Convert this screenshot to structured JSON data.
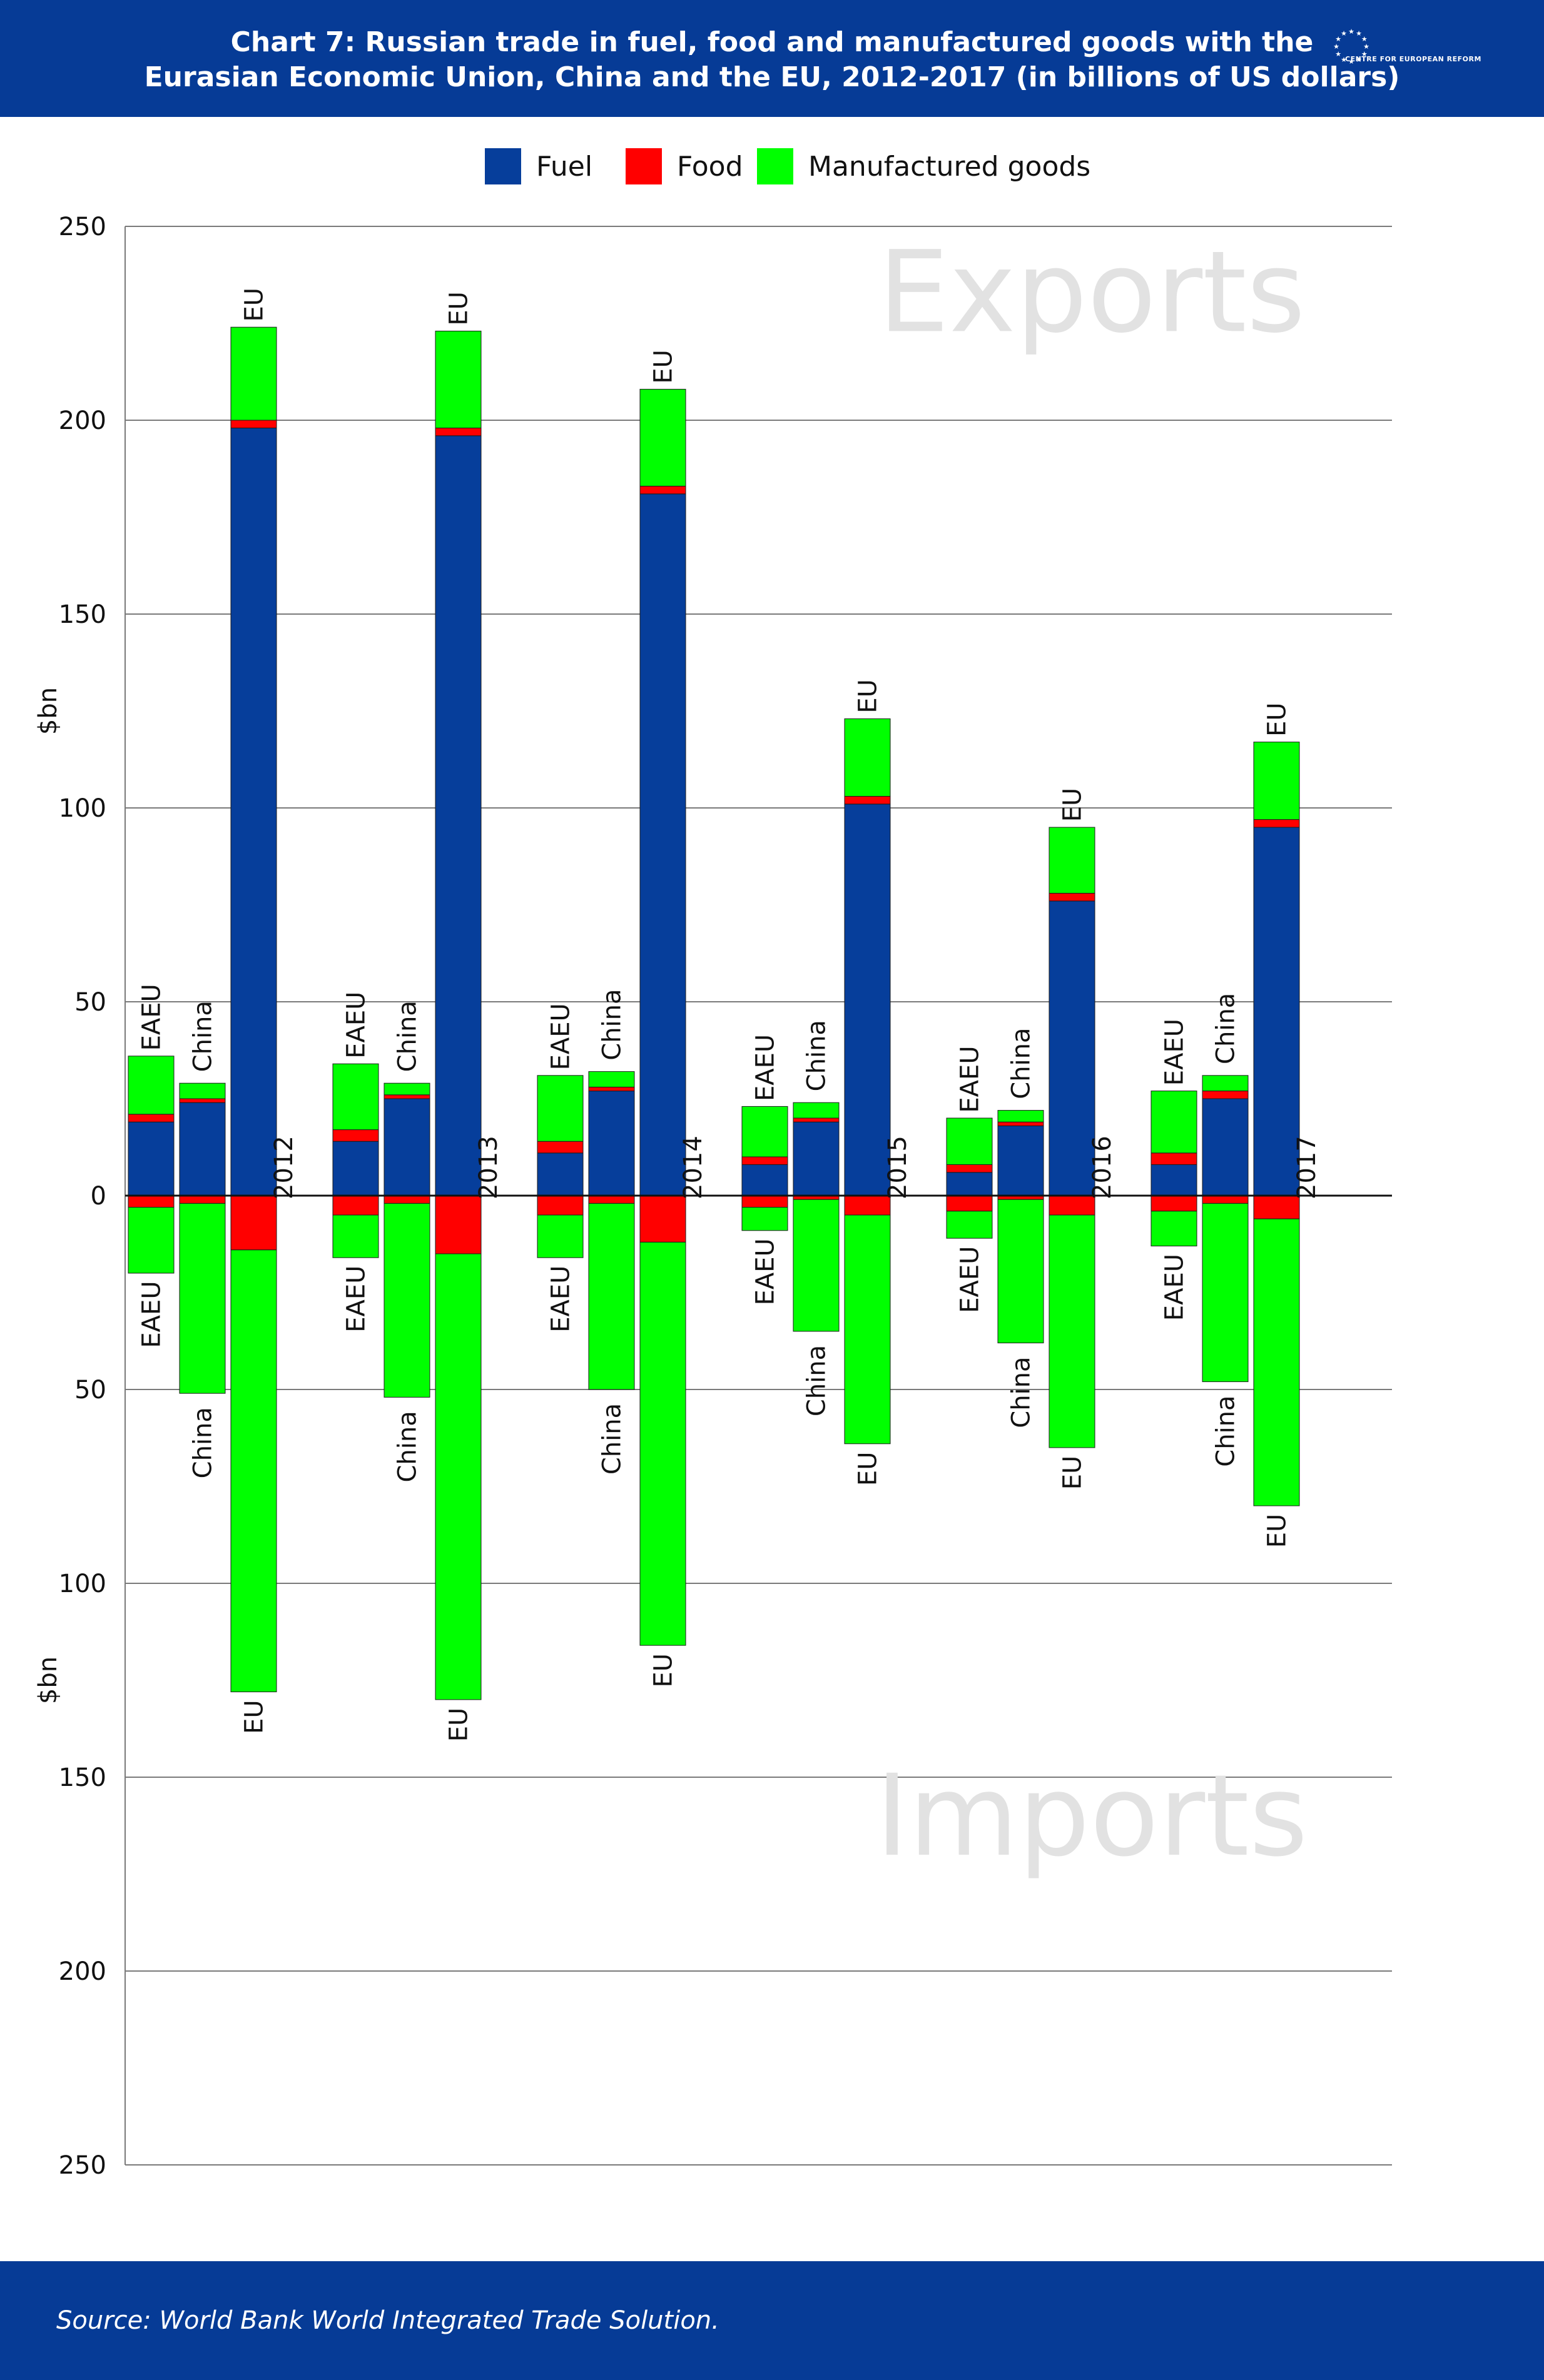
{
  "header": {
    "title_line1": "Chart 7: Russian trade in fuel, food and manufactured goods with the",
    "title_line2": "Eurasian Economic Union, China and the EU, 2012-2017 (in billions of US dollars)",
    "logo_text": "CENTRE FOR EUROPEAN REFORM"
  },
  "footer": {
    "source": "Source: World Bank World Integrated Trade Solution."
  },
  "colors": {
    "fuel": "#063e9b",
    "food": "#ff0000",
    "manufactured": "#00ff00",
    "banner": "#063b96"
  },
  "chart_data": {
    "type": "bar",
    "stacked": true,
    "diverging": true,
    "legend": [
      "Fuel",
      "Food",
      "Manufactured goods"
    ],
    "legend_position": "top",
    "ylabel_top": "$bn",
    "ylabel_bottom": "$bn",
    "region_top": "Exports",
    "region_bottom": "Imports",
    "ylim": [
      -250,
      250
    ],
    "yticks": [
      250,
      200,
      150,
      100,
      50,
      0,
      50,
      100,
      150,
      200,
      250
    ],
    "grid": true,
    "partners": [
      "EAEU",
      "China",
      "EU"
    ],
    "years": [
      {
        "year": "2012",
        "groups": [
          {
            "partner": "EAEU",
            "exports": {
              "fuel": 19,
              "food": 2,
              "manufactured": 15
            },
            "imports": {
              "fuel": 0,
              "food": 3,
              "manufactured": 17
            }
          },
          {
            "partner": "China",
            "exports": {
              "fuel": 24,
              "food": 1,
              "manufactured": 4
            },
            "imports": {
              "fuel": 0,
              "food": 2,
              "manufactured": 49
            }
          },
          {
            "partner": "EU",
            "exports": {
              "fuel": 198,
              "food": 2,
              "manufactured": 24
            },
            "imports": {
              "fuel": 0,
              "food": 14,
              "manufactured": 114
            }
          }
        ]
      },
      {
        "year": "2013",
        "groups": [
          {
            "partner": "EAEU",
            "exports": {
              "fuel": 14,
              "food": 3,
              "manufactured": 17
            },
            "imports": {
              "fuel": 0,
              "food": 5,
              "manufactured": 11
            }
          },
          {
            "partner": "China",
            "exports": {
              "fuel": 25,
              "food": 1,
              "manufactured": 3
            },
            "imports": {
              "fuel": 0,
              "food": 2,
              "manufactured": 50
            }
          },
          {
            "partner": "EU",
            "exports": {
              "fuel": 196,
              "food": 2,
              "manufactured": 25
            },
            "imports": {
              "fuel": 0,
              "food": 15,
              "manufactured": 115
            }
          }
        ]
      },
      {
        "year": "2014",
        "groups": [
          {
            "partner": "EAEU",
            "exports": {
              "fuel": 11,
              "food": 3,
              "manufactured": 17
            },
            "imports": {
              "fuel": 0,
              "food": 5,
              "manufactured": 11
            }
          },
          {
            "partner": "China",
            "exports": {
              "fuel": 27,
              "food": 1,
              "manufactured": 4
            },
            "imports": {
              "fuel": 0,
              "food": 2,
              "manufactured": 48
            }
          },
          {
            "partner": "EU",
            "exports": {
              "fuel": 181,
              "food": 2,
              "manufactured": 25
            },
            "imports": {
              "fuel": 0,
              "food": 12,
              "manufactured": 104
            }
          }
        ]
      },
      {
        "year": "2015",
        "groups": [
          {
            "partner": "EAEU",
            "exports": {
              "fuel": 8,
              "food": 2,
              "manufactured": 13
            },
            "imports": {
              "fuel": 0,
              "food": 3,
              "manufactured": 6
            }
          },
          {
            "partner": "China",
            "exports": {
              "fuel": 19,
              "food": 1,
              "manufactured": 4
            },
            "imports": {
              "fuel": 0,
              "food": 1,
              "manufactured": 34
            }
          },
          {
            "partner": "EU",
            "exports": {
              "fuel": 101,
              "food": 2,
              "manufactured": 20
            },
            "imports": {
              "fuel": 0,
              "food": 5,
              "manufactured": 59
            }
          }
        ]
      },
      {
        "year": "2016",
        "groups": [
          {
            "partner": "EAEU",
            "exports": {
              "fuel": 6,
              "food": 2,
              "manufactured": 12
            },
            "imports": {
              "fuel": 0,
              "food": 4,
              "manufactured": 7
            }
          },
          {
            "partner": "China",
            "exports": {
              "fuel": 18,
              "food": 1,
              "manufactured": 3
            },
            "imports": {
              "fuel": 0,
              "food": 1,
              "manufactured": 37
            }
          },
          {
            "partner": "EU",
            "exports": {
              "fuel": 76,
              "food": 2,
              "manufactured": 17
            },
            "imports": {
              "fuel": 0,
              "food": 5,
              "manufactured": 60
            }
          }
        ]
      },
      {
        "year": "2017",
        "groups": [
          {
            "partner": "EAEU",
            "exports": {
              "fuel": 8,
              "food": 3,
              "manufactured": 16
            },
            "imports": {
              "fuel": 0,
              "food": 4,
              "manufactured": 9
            }
          },
          {
            "partner": "China",
            "exports": {
              "fuel": 25,
              "food": 2,
              "manufactured": 4
            },
            "imports": {
              "fuel": 0,
              "food": 2,
              "manufactured": 46
            }
          },
          {
            "partner": "EU",
            "exports": {
              "fuel": 95,
              "food": 2,
              "manufactured": 20
            },
            "imports": {
              "fuel": 0,
              "food": 6,
              "manufactured": 74
            }
          }
        ]
      }
    ]
  }
}
